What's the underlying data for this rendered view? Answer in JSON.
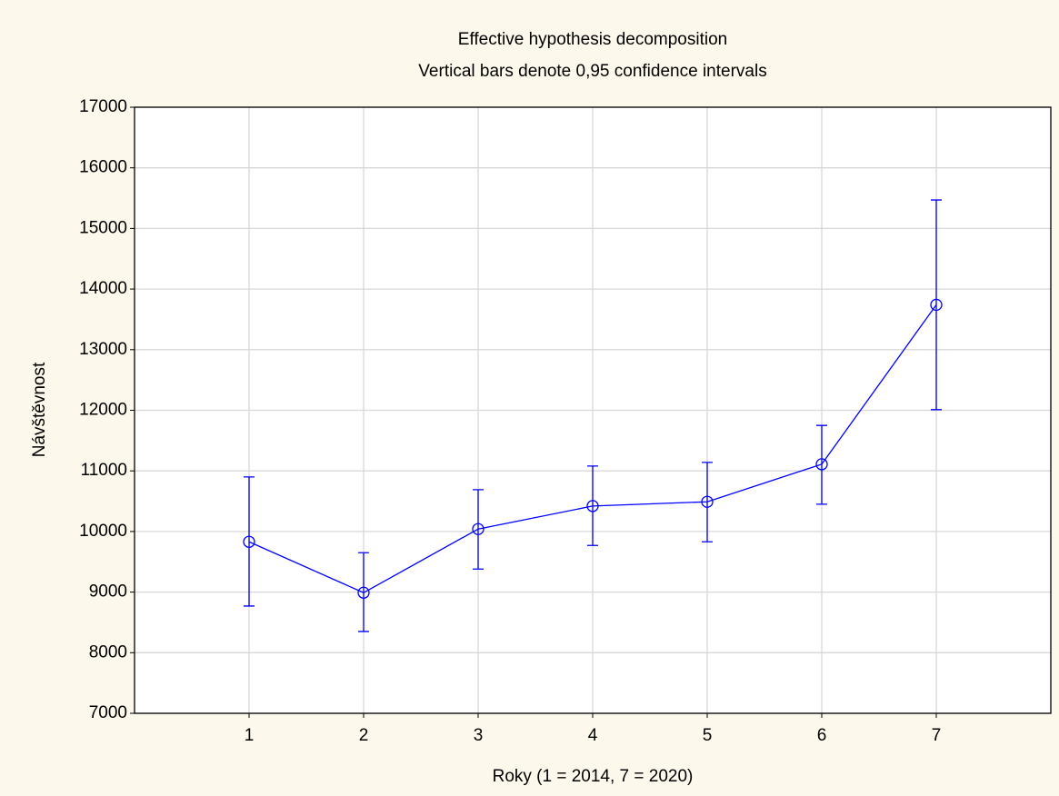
{
  "chart_data": {
    "type": "line",
    "title": "Effective hypothesis decomposition",
    "subtitle": "Vertical bars denote 0,95 confidence intervals",
    "xlabel": "Roky (1 = 2014, 7 = 2020)",
    "ylabel": "Návštěvnost",
    "x": [
      1,
      2,
      3,
      4,
      5,
      6,
      7
    ],
    "xlim": [
      0,
      8
    ],
    "xticks": [
      1,
      2,
      3,
      4,
      5,
      6,
      7
    ],
    "ylim": [
      7000,
      17000
    ],
    "yticks": [
      7000,
      8000,
      9000,
      10000,
      11000,
      12000,
      13000,
      14000,
      15000,
      16000,
      17000
    ],
    "grid": true,
    "series": [
      {
        "color": "#0000ff",
        "values": [
          9830,
          8990,
          10040,
          10420,
          10490,
          11110,
          13740
        ],
        "lower": [
          8770,
          8350,
          9380,
          9770,
          9830,
          10450,
          12010
        ],
        "upper": [
          10900,
          9650,
          10690,
          11080,
          11140,
          11750,
          15470
        ]
      }
    ]
  }
}
